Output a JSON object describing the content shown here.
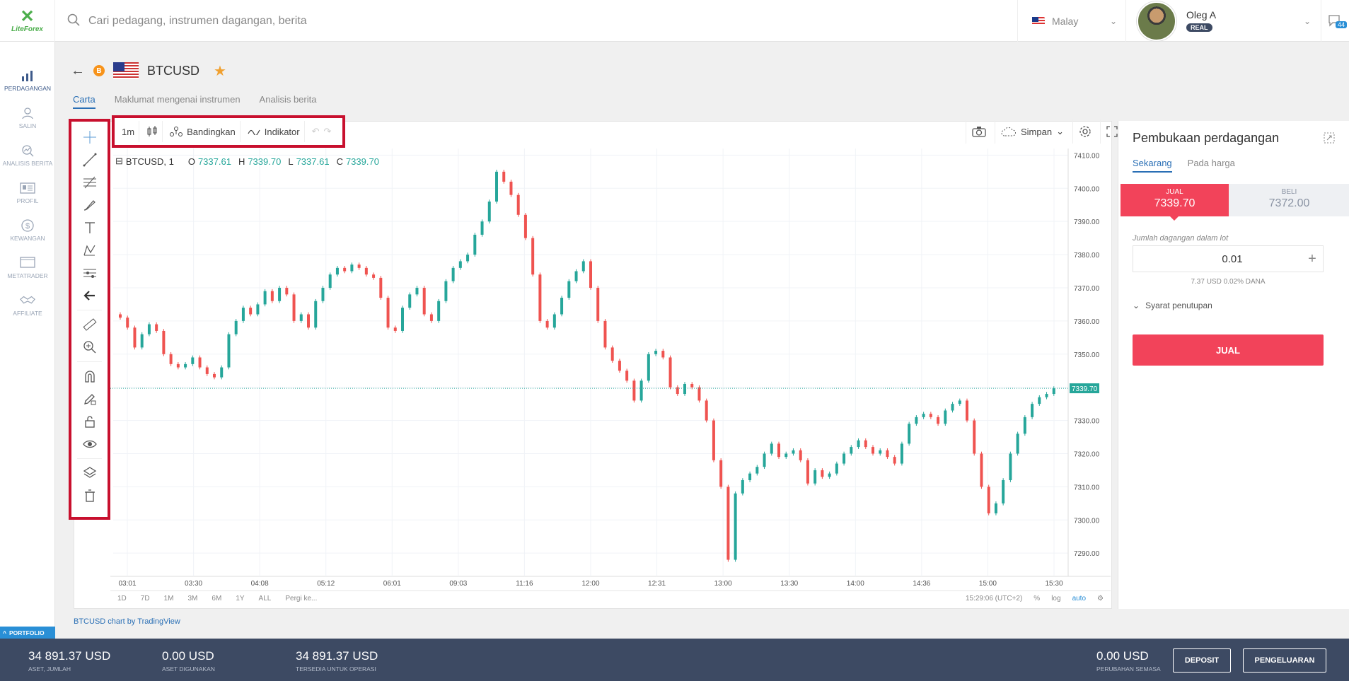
{
  "brand": {
    "logo_text": "LiteForex"
  },
  "search": {
    "placeholder": "Cari pedagang, instrumen dagangan, berita"
  },
  "language": {
    "label": "Malay"
  },
  "user": {
    "name": "Oleg A",
    "account_type": "REAL"
  },
  "messages": {
    "count": "44"
  },
  "nav": {
    "items": [
      {
        "label": "PERDAGANGAN",
        "icon": "chart-bars-icon"
      },
      {
        "label": "SALIN",
        "icon": "person-copy-icon"
      },
      {
        "label": "ANALISIS BERITA",
        "icon": "analysis-icon"
      },
      {
        "label": "PROFIL",
        "icon": "id-card-icon"
      },
      {
        "label": "KEWANGAN",
        "icon": "dollar-coin-icon"
      },
      {
        "label": "METATRADER",
        "icon": "monitor-icon"
      },
      {
        "label": "AFFILIATE",
        "icon": "handshake-icon"
      }
    ],
    "portfolio": "PORTFOLIO"
  },
  "instrument": {
    "symbol": "BTCUSD"
  },
  "tabs": [
    "Carta",
    "Maklumat mengenai instrumen",
    "Analisis berita"
  ],
  "toolbar": {
    "interval": "1m",
    "compare": "Bandingkan",
    "indicator": "Indikator",
    "save": "Simpan"
  },
  "chart_legend": {
    "symbol": "BTCUSD, 1",
    "o_label": "O",
    "o": "7337.61",
    "h_label": "H",
    "h": "7339.70",
    "l_label": "L",
    "l": "7337.61",
    "c_label": "C",
    "c": "7339.70"
  },
  "range_bar": {
    "ranges": [
      "1D",
      "7D",
      "1M",
      "3M",
      "6M",
      "1Y",
      "ALL"
    ],
    "goto": "Pergi ke...",
    "time": "15:29:06 (UTC+2)",
    "pct": "%",
    "log": "log",
    "auto": "auto"
  },
  "chart_credit": "BTCUSD chart by TradingView",
  "chart_data": {
    "type": "candlestick",
    "x_ticks": [
      "03:01",
      "03:30",
      "04:08",
      "05:12",
      "06:01",
      "09:03",
      "11:16",
      "12:00",
      "12:31",
      "13:00",
      "13:30",
      "14:00",
      "14:36",
      "15:00",
      "15:30"
    ],
    "y_ticks": [
      7410.0,
      7400.0,
      7390.0,
      7380.0,
      7370.0,
      7360.0,
      7350.0,
      7340.0,
      7330.0,
      7320.0,
      7310.0,
      7300.0,
      7290.0
    ],
    "ylim": [
      7283,
      7412
    ],
    "last_price": 7339.7,
    "last_price_label": "7339.70",
    "up_color": "#26a69a",
    "down_color": "#ef5350",
    "close_path": [
      7361,
      7358,
      7352,
      7356,
      7359,
      7357,
      7350,
      7347,
      7346,
      7347,
      7349,
      7346,
      7344,
      7343,
      7346,
      7356,
      7360,
      7364,
      7362,
      7365,
      7369,
      7366,
      7370,
      7368,
      7360,
      7362,
      7358,
      7366,
      7370,
      7374,
      7376,
      7375,
      7377,
      7376,
      7374,
      7373,
      7367,
      7358,
      7357,
      7364,
      7368,
      7370,
      7362,
      7360,
      7366,
      7372,
      7376,
      7378,
      7380,
      7386,
      7390,
      7396,
      7405,
      7402,
      7398,
      7392,
      7385,
      7374,
      7360,
      7358,
      7362,
      7367,
      7372,
      7375,
      7378,
      7370,
      7360,
      7352,
      7348,
      7345,
      7342,
      7336,
      7342,
      7350,
      7351,
      7349,
      7340,
      7338,
      7341,
      7340,
      7336,
      7330,
      7318,
      7310,
      7288,
      7308,
      7312,
      7314,
      7316,
      7320,
      7323,
      7319,
      7320,
      7321,
      7318,
      7311,
      7315,
      7313,
      7314,
      7317,
      7320,
      7322,
      7324,
      7322,
      7320,
      7321,
      7319,
      7317,
      7323,
      7329,
      7331,
      7332,
      7331,
      7329,
      7333,
      7335,
      7336,
      7330,
      7320,
      7310,
      7302,
      7305,
      7312,
      7320,
      7326,
      7331,
      7335,
      7337,
      7338,
      7339.7
    ]
  }
}
